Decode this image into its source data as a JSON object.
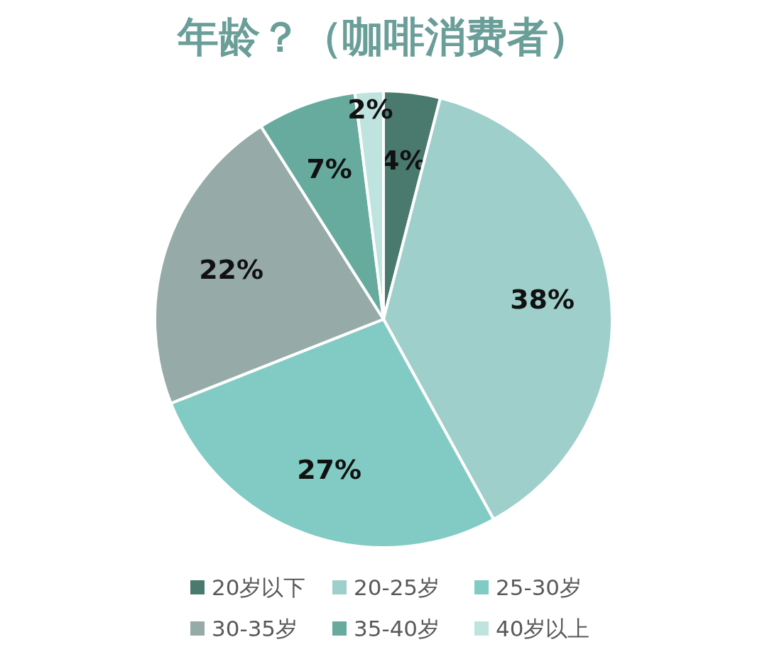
{
  "chart_data": {
    "type": "pie",
    "title": "年龄？（咖啡消费者）",
    "categories": [
      "20岁以下",
      "20-25岁",
      "25-30岁",
      "30-35岁",
      "35-40岁",
      "40岁以上"
    ],
    "values": [
      4,
      38,
      27,
      22,
      7,
      2
    ],
    "colors": [
      "#4a7a6e",
      "#9fcfca",
      "#82cbc4",
      "#96aba8",
      "#66ab9e",
      "#bfe3de"
    ],
    "value_labels": [
      "4%",
      "38%",
      "27%",
      "22%",
      "7%",
      "2%"
    ],
    "legend": "bottom"
  }
}
